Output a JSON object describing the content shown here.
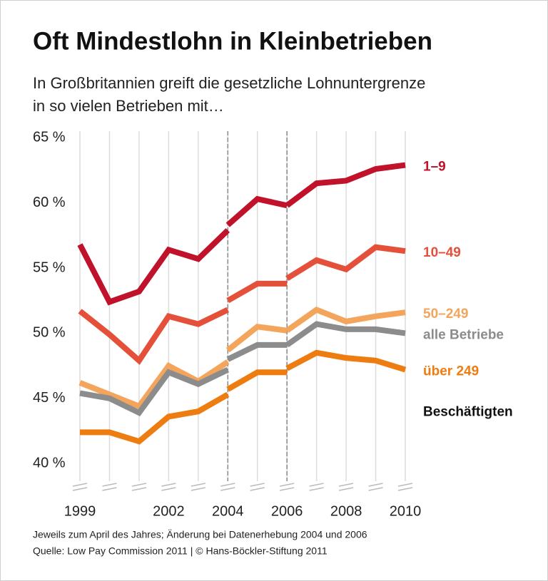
{
  "chart_data": {
    "type": "line",
    "title": "Oft Mindestlohn in Kleinbetrieben",
    "subtitle": [
      "In Großbritannien greift die gesetzliche Lohnuntergrenze",
      "in so vielen Betrieben mit…"
    ],
    "notes": [
      "Jeweils zum April des Jahres; Änderung bei Datenerhebung 2004 und 2006",
      "Quelle: Low Pay Commission 2011 | © Hans-Böckler-Stiftung 2011"
    ],
    "legend_suffix": "Beschäftigten",
    "x": [
      1999,
      2000,
      2001,
      2002,
      2003,
      2004,
      2004,
      2004,
      2005,
      2006,
      2006,
      2006,
      2007,
      2008,
      2009,
      2010
    ],
    "xlim": [
      1999,
      2010
    ],
    "xticks": [
      1999,
      2002,
      2004,
      2006,
      2008,
      2010
    ],
    "break_years": [
      2004,
      2006
    ],
    "ylim": [
      38.1,
      65.5
    ],
    "yticks": [
      {
        "value": 40,
        "label": "40 %"
      },
      {
        "value": 45,
        "label": "45 %"
      },
      {
        "value": 50,
        "label": "50 %"
      },
      {
        "value": 55,
        "label": "55 %"
      },
      {
        "value": 60,
        "label": "60 %"
      },
      {
        "value": 65,
        "label": "65 %"
      }
    ],
    "grid": true,
    "series": [
      {
        "name": "1–9",
        "color": "#c0122a",
        "values": [
          56.8,
          52.4,
          53.2,
          56.4,
          55.7,
          57.9,
          null,
          58.3,
          60.3,
          59.8,
          null,
          59.8,
          61.5,
          61.7,
          62.6,
          62.9
        ]
      },
      {
        "name": "10–49",
        "color": "#e4503a",
        "values": [
          51.7,
          49.9,
          47.9,
          51.3,
          50.7,
          51.8,
          null,
          52.5,
          53.8,
          53.8,
          null,
          54.2,
          55.6,
          54.9,
          56.6,
          56.3
        ]
      },
      {
        "name": "50–249",
        "color": "#f4a55c",
        "values": [
          46.2,
          45.3,
          44.4,
          47.5,
          46.3,
          47.8,
          null,
          48.7,
          50.5,
          50.2,
          null,
          50.2,
          51.8,
          50.9,
          51.3,
          51.6
        ]
      },
      {
        "name": "alle Betriebe",
        "color": "#8c8c8c",
        "values": [
          45.4,
          45.0,
          43.9,
          47.0,
          46.1,
          47.2,
          null,
          48.0,
          49.1,
          49.1,
          null,
          49.1,
          50.7,
          50.3,
          50.3,
          50.0
        ]
      },
      {
        "name": "über 249",
        "color": "#ee7d11",
        "values": [
          42.4,
          42.4,
          41.7,
          43.6,
          44.0,
          45.3,
          null,
          45.7,
          47.0,
          47.0,
          null,
          47.3,
          48.5,
          48.1,
          47.9,
          47.2
        ]
      }
    ]
  }
}
